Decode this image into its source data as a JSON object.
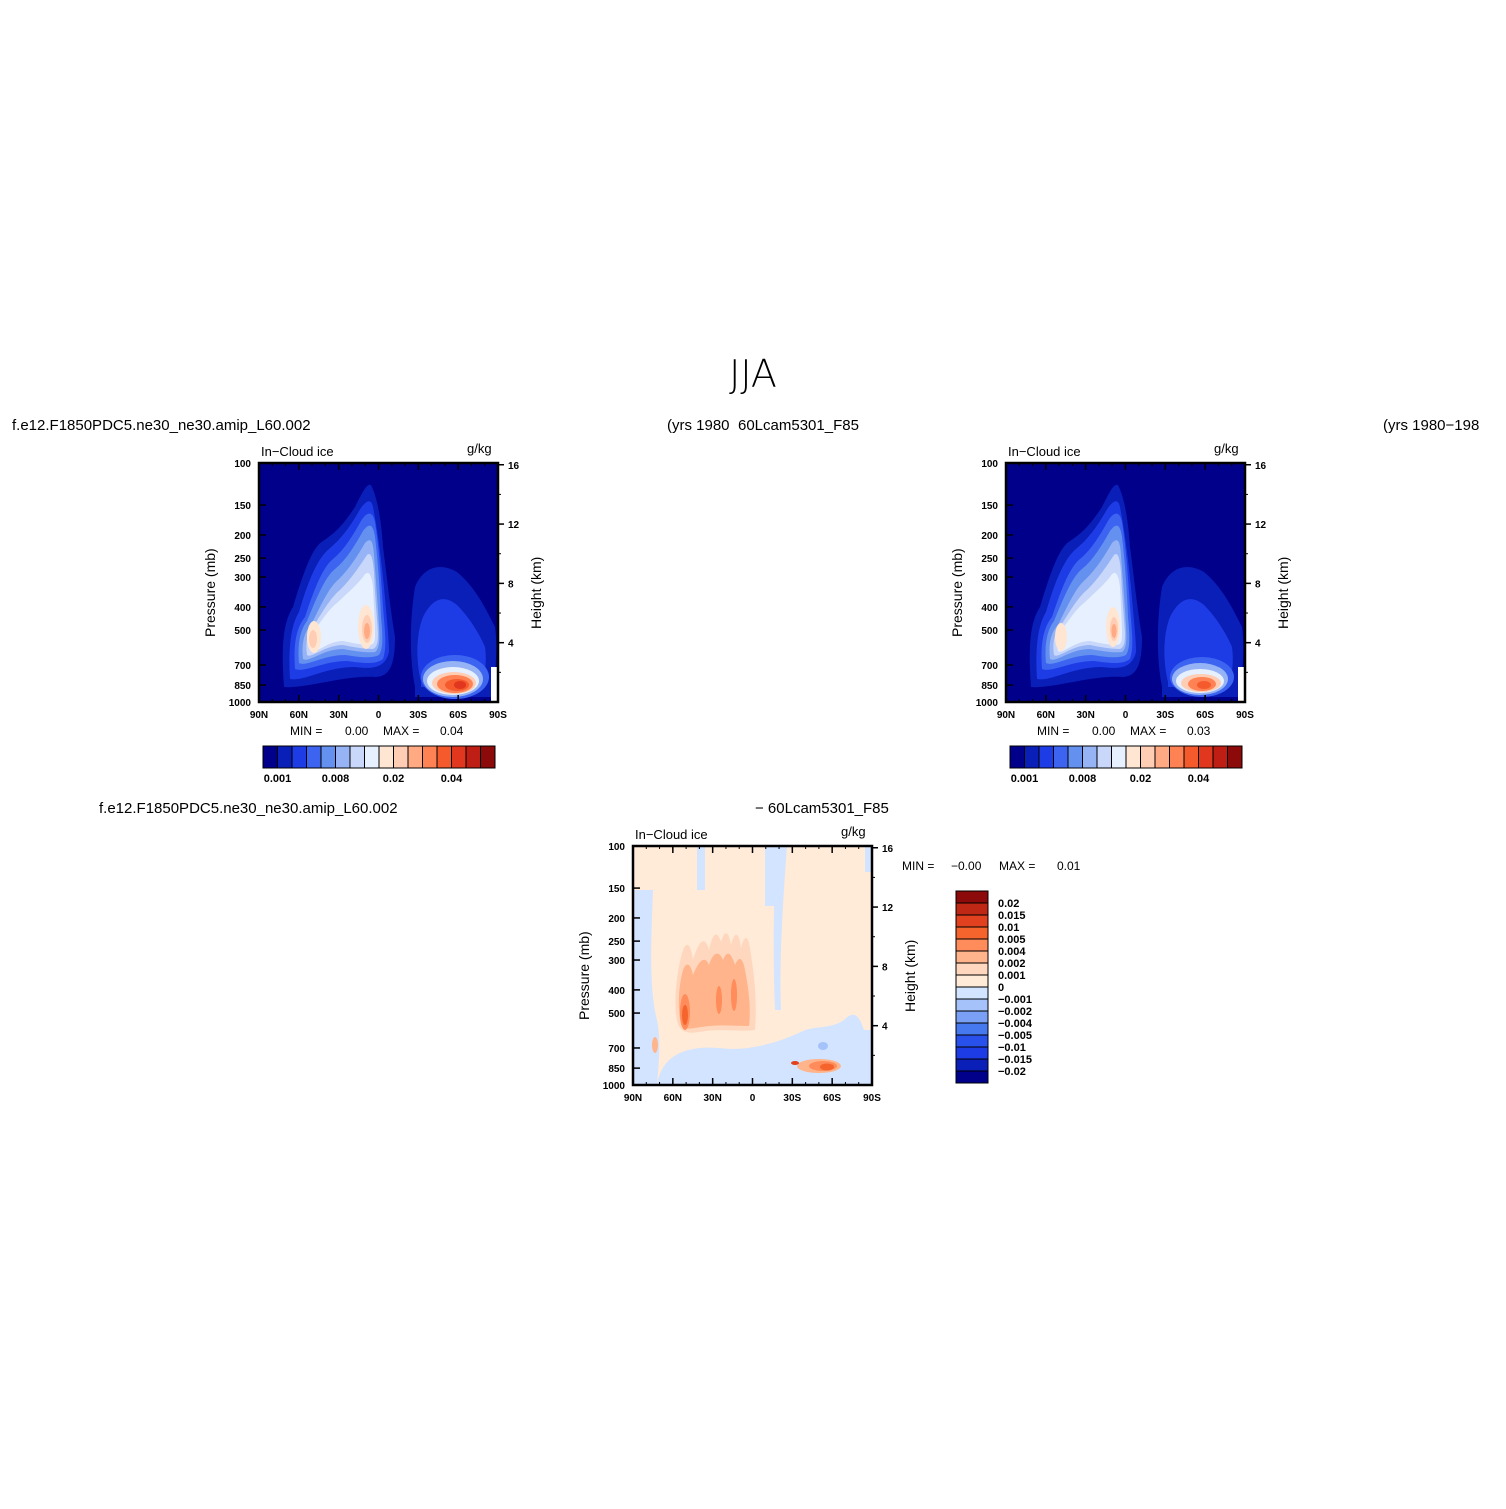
{
  "figure": {
    "title": "JJA",
    "top_left_label": "f.e12.F1850PDC5.ne30_ne30.amip_L60.002",
    "top_mid_label": "(yrs 1980",
    "top_mid_label2": "60Lcam5301_F85",
    "top_right_label": "(yrs 1980−198",
    "bottom_left_label": "f.e12.F1850PDC5.ne30_ne30.amip_L60.002",
    "bottom_right_label": "− 60Lcam5301_F85"
  },
  "colors": {
    "abs_levels": [
      "#00008b",
      "#0a1eb8",
      "#1e3ce6",
      "#3c64f0",
      "#6490f0",
      "#96b4f5",
      "#c8d7fa",
      "#e6f0ff",
      "#ffe6d2",
      "#ffcdb4",
      "#ffaa82",
      "#ff8255",
      "#f55a2d",
      "#e1371e",
      "#be1e14",
      "#8c0a0a"
    ],
    "diff_levels": [
      "#00008b",
      "#0a1eb8",
      "#1e3ce6",
      "#2850eb",
      "#4678f0",
      "#7aa0f5",
      "#a5c3fa",
      "#d2e4ff",
      "#ffebd7",
      "#ffd7be",
      "#ffb48c",
      "#ff8c5a",
      "#f5642d",
      "#e1411e",
      "#be2814",
      "#8c0a0a"
    ]
  },
  "chart_data": [
    {
      "type": "heatmap",
      "title": "In−Cloud ice",
      "units": "g/kg",
      "ylabel": "Pressure (mb)",
      "ylabel_right": "Height (km)",
      "x_ticks": [
        "90N",
        "60N",
        "30N",
        "0",
        "30S",
        "60S",
        "90S"
      ],
      "y_ticks": [
        100,
        150,
        200,
        250,
        300,
        400,
        500,
        700,
        850,
        1000
      ],
      "y_right_ticks": [
        16,
        12,
        8,
        4
      ],
      "min_label": "MIN =",
      "min": "0.00",
      "max_label": "MAX =",
      "max": "0.04",
      "colorbar_labels": [
        "0.001",
        "0.008",
        "0.02",
        "0.04"
      ]
    },
    {
      "type": "heatmap",
      "title": "In−Cloud ice",
      "units": "g/kg",
      "ylabel": "Pressure (mb)",
      "ylabel_right": "Height (km)",
      "x_ticks": [
        "90N",
        "60N",
        "30N",
        "0",
        "30S",
        "60S",
        "90S"
      ],
      "y_ticks": [
        100,
        150,
        200,
        250,
        300,
        400,
        500,
        700,
        850,
        1000
      ],
      "y_right_ticks": [
        16,
        12,
        8,
        4
      ],
      "min_label": "MIN =",
      "min": "0.00",
      "max_label": "MAX =",
      "max": "0.03",
      "colorbar_labels": [
        "0.001",
        "0.008",
        "0.02",
        "0.04"
      ]
    },
    {
      "type": "heatmap",
      "title": "In−Cloud ice",
      "units": "g/kg",
      "ylabel": "Pressure (mb)",
      "ylabel_right": "Height (km)",
      "x_ticks": [
        "90N",
        "60N",
        "30N",
        "0",
        "30S",
        "60S",
        "90S"
      ],
      "y_ticks": [
        100,
        150,
        200,
        250,
        300,
        400,
        500,
        700,
        850,
        1000
      ],
      "y_right_ticks": [
        16,
        12,
        8,
        4
      ],
      "min_label": "MIN =",
      "min": "−0.00",
      "max_label": "MAX =",
      "max": "0.01",
      "colorbar_labels": [
        "0.02",
        "0.015",
        "0.01",
        "0.005",
        "0.004",
        "0.002",
        "0.001",
        "0",
        "−0.001",
        "−0.002",
        "−0.004",
        "−0.005",
        "−0.01",
        "−0.015",
        "−0.02"
      ]
    }
  ]
}
